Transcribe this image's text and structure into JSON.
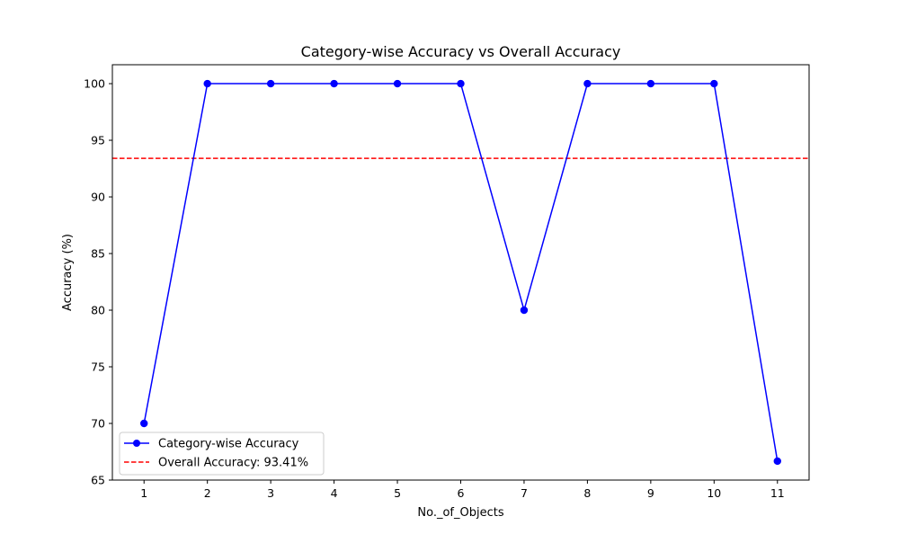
{
  "chart_data": {
    "type": "line",
    "title": "Category-wise Accuracy vs Overall Accuracy",
    "xlabel": "No._of_Objects",
    "ylabel": "Accuracy (%)",
    "x": [
      1,
      2,
      3,
      4,
      5,
      6,
      7,
      8,
      9,
      10,
      11
    ],
    "x_ticks": [
      "1",
      "2",
      "3",
      "4",
      "5",
      "6",
      "7",
      "8",
      "9",
      "10",
      "11"
    ],
    "y_ticks": [
      65,
      70,
      75,
      80,
      85,
      90,
      95,
      100
    ],
    "xlim": [
      0.5,
      11.5
    ],
    "ylim": [
      65,
      101.67
    ],
    "grid": false,
    "legend_position": "lower-left",
    "series": [
      {
        "name": "Category-wise Accuracy",
        "values": [
          70,
          100,
          100,
          100,
          100,
          100,
          80,
          100,
          100,
          100,
          66.67
        ],
        "color": "#0000ff",
        "marker": "circle",
        "line_style": "solid"
      }
    ],
    "reference_lines": [
      {
        "name": "Overall Accuracy: 93.41%",
        "value": 93.41,
        "color": "#ff0000",
        "line_style": "dashed"
      }
    ]
  }
}
